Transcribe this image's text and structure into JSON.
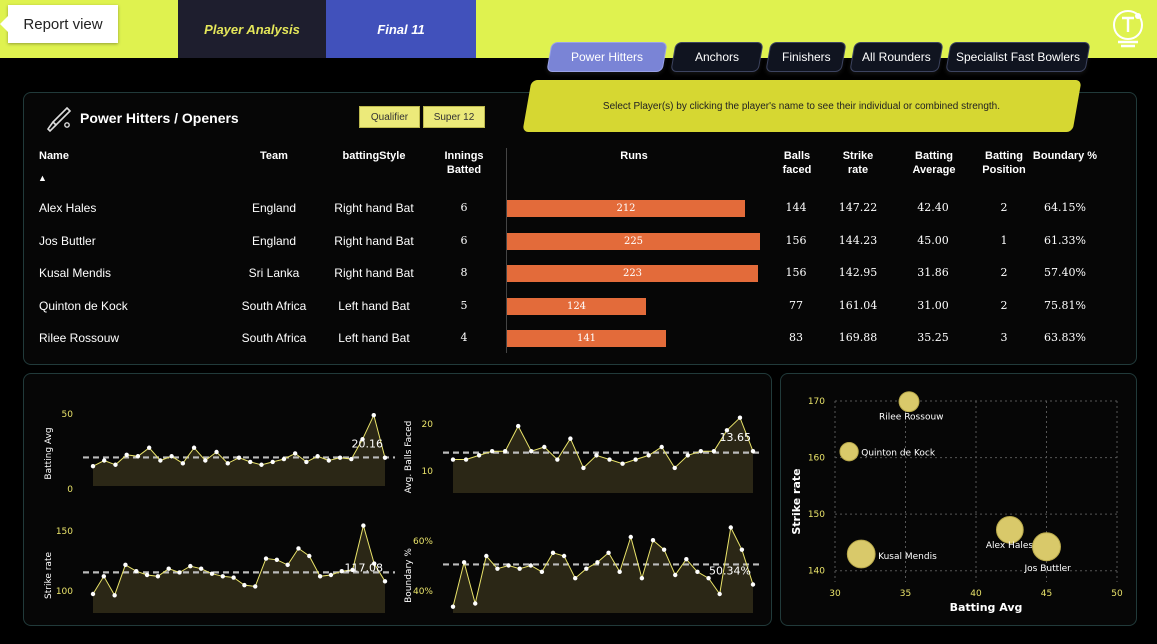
{
  "header": {
    "back_label": "Report view",
    "tabs": [
      {
        "label": "Player Analysis"
      },
      {
        "label": "Final 11"
      }
    ]
  },
  "category_tabs": [
    {
      "label": "Power Hitters",
      "active": true
    },
    {
      "label": "Anchors",
      "active": false
    },
    {
      "label": "Finishers",
      "active": false
    },
    {
      "label": "All Rounders",
      "active": false
    },
    {
      "label": "Specialist Fast Bowlers",
      "active": false
    }
  ],
  "instruction": "Select Player(s) by clicking the player's name to see their individual or combined strength.",
  "table": {
    "title": "Power Hitters / Openers",
    "stage_buttons": [
      "Qualifier",
      "Super 12"
    ],
    "columns": {
      "name": "Name",
      "team": "Team",
      "style": "battingStyle",
      "innings": [
        "Innings",
        "Batted"
      ],
      "runs": "Runs",
      "balls": [
        "Balls",
        "faced"
      ],
      "sr": [
        "Strike",
        "rate"
      ],
      "avg": [
        "Batting",
        "Average"
      ],
      "pos": [
        "Batting",
        "Position"
      ],
      "boundary": "Boundary %"
    },
    "sort_indicator": "▲",
    "rows": [
      {
        "name": "Alex Hales",
        "team": "England",
        "style": "Right hand Bat",
        "innings": "6",
        "runs": 212,
        "balls": "144",
        "sr": "147.22",
        "avg": "42.40",
        "pos": "2",
        "boundary": "64.15%"
      },
      {
        "name": "Jos Buttler",
        "team": "England",
        "style": "Right hand Bat",
        "innings": "6",
        "runs": 225,
        "balls": "156",
        "sr": "144.23",
        "avg": "45.00",
        "pos": "1",
        "boundary": "61.33%"
      },
      {
        "name": "Kusal Mendis",
        "team": "Sri Lanka",
        "style": "Right hand Bat",
        "innings": "8",
        "runs": 223,
        "balls": "156",
        "sr": "142.95",
        "avg": "31.86",
        "pos": "2",
        "boundary": "57.40%"
      },
      {
        "name": "Quinton de Kock",
        "team": "South Africa",
        "style": "Left hand Bat",
        "innings": "5",
        "runs": 124,
        "balls": "77",
        "sr": "161.04",
        "avg": "31.00",
        "pos": "2",
        "boundary": "75.81%"
      },
      {
        "name": "Rilee Rossouw",
        "team": "South Africa",
        "style": "Left hand Bat",
        "innings": "4",
        "runs": 141,
        "balls": "83",
        "sr": "169.88",
        "avg": "35.25",
        "pos": "3",
        "boundary": "63.83%"
      }
    ]
  },
  "colors": {
    "accent": "#dff24f",
    "bar": "#e36b3a",
    "line": "#e9e36a",
    "bubble": "#d9c96a",
    "active_tab": "#7a84d6"
  },
  "chart_data": [
    {
      "type": "area",
      "ylabel": "Batting Avg",
      "yticks": [
        "50",
        "0"
      ],
      "ylim": [
        0,
        60
      ],
      "avg_line": 20.16,
      "last_label": "20.16",
      "values": [
        14,
        18,
        15,
        22,
        21,
        27,
        18,
        21,
        16,
        27,
        18,
        24,
        16,
        20,
        17,
        15,
        17,
        19,
        23,
        17,
        21,
        18,
        20,
        19,
        33,
        50,
        20
      ]
    },
    {
      "type": "area",
      "ylabel": "Avg. Balls Faced",
      "yticks": [
        "20",
        "10"
      ],
      "ylim": [
        4,
        26
      ],
      "avg_line": 13.65,
      "last_label": "13.65",
      "values": [
        12,
        12,
        13,
        14,
        14,
        20,
        14,
        15,
        12,
        17,
        10,
        13,
        12,
        11,
        12,
        13,
        15,
        10,
        13,
        14,
        14,
        19,
        22,
        14
      ]
    },
    {
      "type": "area",
      "ylabel": "Strike rate",
      "yticks": [
        "150",
        "100"
      ],
      "ylim": [
        85,
        160
      ],
      "avg_line": 117.08,
      "last_label": "117.08",
      "values": [
        100,
        114,
        99,
        123,
        118,
        115,
        114,
        120,
        117,
        122,
        120,
        116,
        114,
        113,
        107,
        106,
        128,
        127,
        123,
        136,
        130,
        114,
        115,
        118,
        119,
        154,
        124,
        110
      ]
    },
    {
      "type": "area",
      "ylabel": "Boundary %",
      "yticks": [
        "60%",
        "40%"
      ],
      "ylim": [
        35,
        65
      ],
      "avg_line": 50.34,
      "last_label": "50.34%",
      "values": [
        37,
        51,
        38,
        53,
        49,
        50,
        49,
        50,
        48,
        54,
        53,
        46,
        49,
        51,
        54,
        48,
        59,
        46,
        58,
        55,
        47,
        52,
        48,
        46,
        41,
        62,
        55,
        44
      ]
    },
    {
      "type": "scatter",
      "xlabel": "Batting Avg",
      "ylabel": "Strike rate",
      "xlim": [
        30,
        50
      ],
      "ylim": [
        138,
        170
      ],
      "xticks": [
        "30",
        "35",
        "40",
        "45",
        "50"
      ],
      "yticks": [
        "170",
        "160",
        "150",
        "140"
      ],
      "points": [
        {
          "label": "Rilee Rossouw",
          "x": 35.25,
          "y": 169.88,
          "runs": 141
        },
        {
          "label": "Quinton de Kock",
          "x": 31.0,
          "y": 161.04,
          "runs": 124
        },
        {
          "label": "Alex Hales",
          "x": 42.4,
          "y": 147.22,
          "runs": 212
        },
        {
          "label": "Jos Buttler",
          "x": 45.0,
          "y": 144.23,
          "runs": 225
        },
        {
          "label": "Kusal Mendis",
          "x": 31.86,
          "y": 142.95,
          "runs": 223
        }
      ]
    }
  ]
}
